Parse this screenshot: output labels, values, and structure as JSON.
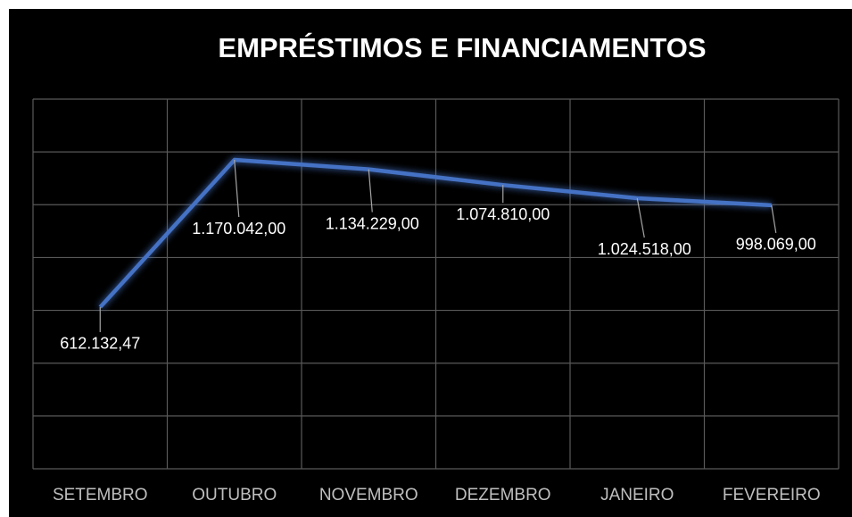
{
  "chart_data": {
    "type": "line",
    "title": "EMPRÉSTIMOS E FINANCIAMENTOS",
    "categories": [
      "SETEMBRO",
      "OUTUBRO",
      "NOVEMBRO",
      "DEZEMBRO",
      "JANEIRO",
      "FEVEREIRO"
    ],
    "series": [
      {
        "name": "EMPRÉSTIMOS E FINANCIAMENTOS",
        "color": "#4472c4",
        "values": [
          612132.47,
          1170042,
          1134229,
          1074810,
          1024518,
          998069
        ],
        "value_labels": [
          "612.132,47",
          "1.170.042,00",
          "1.134.229,00",
          "1.074.810,00",
          "1.024.518,00",
          "998.069,00"
        ]
      }
    ],
    "ylim": [
      0,
      1400000
    ],
    "yticks": [
      0,
      200000,
      400000,
      600000,
      800000,
      1000000,
      1200000,
      1400000
    ],
    "grid": true
  }
}
